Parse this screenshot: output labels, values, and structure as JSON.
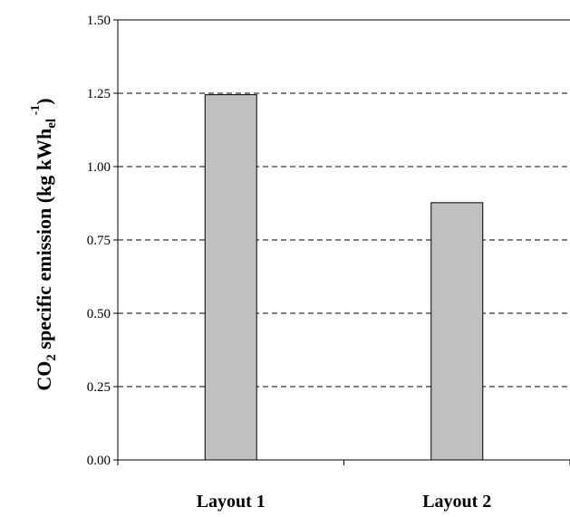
{
  "chart_data": {
    "type": "bar",
    "categories": [
      "Layout 1",
      "Layout 2"
    ],
    "values": [
      1.245,
      0.877
    ],
    "ylim": [
      0,
      1.5
    ],
    "yticks": [
      "0.00",
      "0.25",
      "0.50",
      "0.75",
      "1.00",
      "1.25",
      "1.50"
    ],
    "ylabel": {
      "prefix": "CO",
      "sub1": "2",
      "middle": " specific emission (kg kWh",
      "sub2": "el",
      "sup": " -1",
      "suffix": ")"
    },
    "grid": "horizontal dashed",
    "bar_color": "#c0c0c0",
    "bar_edge_color": "#000000"
  }
}
